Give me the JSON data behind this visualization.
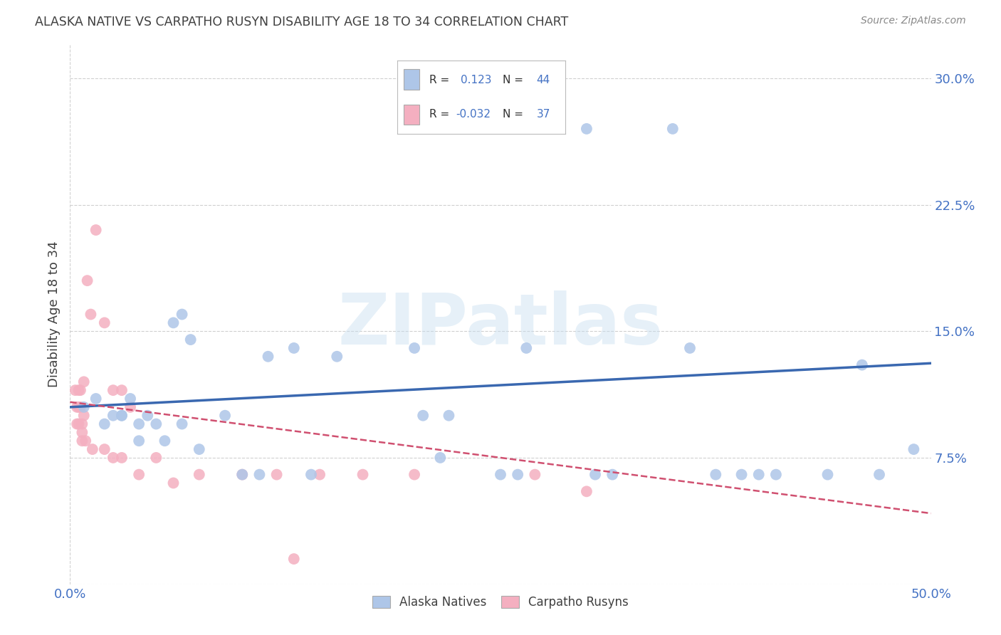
{
  "title": "ALASKA NATIVE VS CARPATHO RUSYN DISABILITY AGE 18 TO 34 CORRELATION CHART",
  "source": "Source: ZipAtlas.com",
  "ylabel": "Disability Age 18 to 34",
  "xlim": [
    0.0,
    0.5
  ],
  "ylim": [
    0.0,
    0.32
  ],
  "x_ticks": [
    0.0,
    0.05,
    0.1,
    0.15,
    0.2,
    0.25,
    0.3,
    0.35,
    0.4,
    0.45,
    0.5
  ],
  "y_ticks": [
    0.0,
    0.075,
    0.15,
    0.225,
    0.3
  ],
  "alaska_R": 0.123,
  "alaska_N": 44,
  "carpatho_R": -0.032,
  "carpatho_N": 37,
  "alaska_color": "#aec6e8",
  "carpatho_color": "#f4afc0",
  "alaska_line_color": "#3a68b0",
  "carpatho_line_color": "#d05070",
  "watermark_text": "ZIPatlas",
  "alaska_x": [
    0.008,
    0.015,
    0.02,
    0.025,
    0.03,
    0.03,
    0.035,
    0.04,
    0.04,
    0.045,
    0.05,
    0.055,
    0.06,
    0.065,
    0.065,
    0.07,
    0.075,
    0.09,
    0.1,
    0.11,
    0.115,
    0.13,
    0.14,
    0.155,
    0.2,
    0.205,
    0.215,
    0.22,
    0.25,
    0.26,
    0.265,
    0.3,
    0.305,
    0.315,
    0.35,
    0.36,
    0.375,
    0.39,
    0.4,
    0.41,
    0.44,
    0.46,
    0.47,
    0.49
  ],
  "alaska_y": [
    0.105,
    0.11,
    0.095,
    0.1,
    0.1,
    0.1,
    0.11,
    0.095,
    0.085,
    0.1,
    0.095,
    0.085,
    0.155,
    0.16,
    0.095,
    0.145,
    0.08,
    0.1,
    0.065,
    0.065,
    0.135,
    0.14,
    0.065,
    0.135,
    0.14,
    0.1,
    0.075,
    0.1,
    0.065,
    0.065,
    0.14,
    0.27,
    0.065,
    0.065,
    0.27,
    0.14,
    0.065,
    0.065,
    0.065,
    0.065,
    0.065,
    0.13,
    0.065,
    0.08
  ],
  "carpatho_x": [
    0.003,
    0.004,
    0.004,
    0.005,
    0.005,
    0.005,
    0.006,
    0.006,
    0.007,
    0.007,
    0.007,
    0.008,
    0.008,
    0.009,
    0.01,
    0.012,
    0.013,
    0.015,
    0.02,
    0.02,
    0.025,
    0.025,
    0.03,
    0.03,
    0.035,
    0.04,
    0.05,
    0.06,
    0.075,
    0.1,
    0.12,
    0.13,
    0.145,
    0.17,
    0.2,
    0.27,
    0.3
  ],
  "carpatho_y": [
    0.115,
    0.105,
    0.095,
    0.115,
    0.105,
    0.095,
    0.115,
    0.105,
    0.095,
    0.09,
    0.085,
    0.12,
    0.1,
    0.085,
    0.18,
    0.16,
    0.08,
    0.21,
    0.155,
    0.08,
    0.115,
    0.075,
    0.115,
    0.075,
    0.105,
    0.065,
    0.075,
    0.06,
    0.065,
    0.065,
    0.065,
    0.015,
    0.065,
    0.065,
    0.065,
    0.065,
    0.055
  ],
  "grid_color": "#d0d0d0",
  "bg_color": "#ffffff",
  "title_color": "#404040",
  "tick_label_color": "#4472c4"
}
